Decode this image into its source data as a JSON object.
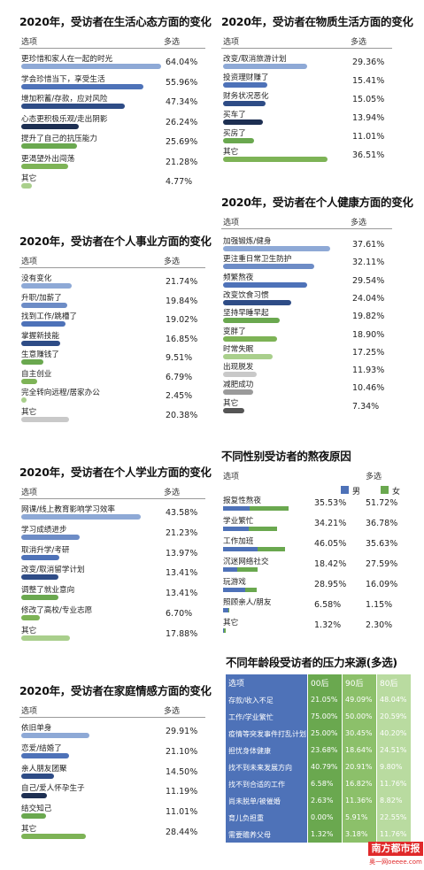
{
  "header_option": "选项",
  "header_multi": "多选",
  "panels": [
    {
      "id": "mind",
      "title": "2020年，受访者在生活心态方面的变化",
      "items": [
        {
          "label": "更珍惜和家人在一起的时光",
          "value": "64.04%",
          "v": 64.04,
          "color": "#8ea9d6"
        },
        {
          "label": "学会珍惜当下，享受生活",
          "value": "55.96%",
          "v": 55.96,
          "color": "#4e72b8"
        },
        {
          "label": "增加积蓄/存款，应对风险",
          "value": "47.34%",
          "v": 47.34,
          "color": "#2e4c86"
        },
        {
          "label": "心态更积极乐观/走出阴影",
          "value": "26.24%",
          "v": 26.24,
          "color": "#1d2f52"
        },
        {
          "label": "提升了自己的抗压能力",
          "value": "25.69%",
          "v": 25.69,
          "color": "#6aa84f"
        },
        {
          "label": "更渴望外出闯荡",
          "value": "21.28%",
          "v": 21.28,
          "color": "#7db356"
        },
        {
          "label": "其它",
          "value": "4.77%",
          "v": 4.77,
          "color": "#a9cf8c"
        }
      ]
    },
    {
      "id": "material",
      "title": "2020年，受访者在物质生活方面的变化",
      "items": [
        {
          "label": "改变/取消旅游计划",
          "value": "29.36%",
          "v": 29.36,
          "color": "#8ea9d6"
        },
        {
          "label": "投资理财赚了",
          "value": "15.41%",
          "v": 15.41,
          "color": "#4e72b8"
        },
        {
          "label": "财务状况恶化",
          "value": "15.05%",
          "v": 15.05,
          "color": "#2e4c86"
        },
        {
          "label": "买车了",
          "value": "13.94%",
          "v": 13.94,
          "color": "#1d2f52"
        },
        {
          "label": "买房了",
          "value": "11.01%",
          "v": 11.01,
          "color": "#6aa84f"
        },
        {
          "label": "其它",
          "value": "36.51%",
          "v": 36.51,
          "color": "#7db356"
        }
      ]
    },
    {
      "id": "health",
      "title": "2020年，受访者在个人健康方面的变化",
      "items": [
        {
          "label": "加强锻炼/健身",
          "value": "37.61%",
          "v": 37.61,
          "color": "#8ea9d6"
        },
        {
          "label": "更注重日常卫生防护",
          "value": "32.11%",
          "v": 32.11,
          "color": "#6d8cc6"
        },
        {
          "label": "频繁熬夜",
          "value": "29.54%",
          "v": 29.54,
          "color": "#4e72b8"
        },
        {
          "label": "改变饮食习惯",
          "value": "24.04%",
          "v": 24.04,
          "color": "#2e4c86"
        },
        {
          "label": "坚持早睡早起",
          "value": "19.82%",
          "v": 19.82,
          "color": "#6aa84f"
        },
        {
          "label": "变胖了",
          "value": "18.90%",
          "v": 18.9,
          "color": "#7db356"
        },
        {
          "label": "时常失眠",
          "value": "17.25%",
          "v": 17.25,
          "color": "#a9cf8c"
        },
        {
          "label": "出现脱发",
          "value": "11.93%",
          "v": 11.93,
          "color": "#c9c9c9"
        },
        {
          "label": "减肥成功",
          "value": "10.46%",
          "v": 10.46,
          "color": "#9a9a9a"
        },
        {
          "label": "其它",
          "value": "7.34%",
          "v": 7.34,
          "color": "#555555"
        }
      ]
    },
    {
      "id": "career",
      "title": "2020年，受访者在个人事业方面的变化",
      "items": [
        {
          "label": "没有变化",
          "value": "21.74%",
          "v": 21.74,
          "color": "#8ea9d6"
        },
        {
          "label": "升职/加薪了",
          "value": "19.84%",
          "v": 19.84,
          "color": "#6d8cc6"
        },
        {
          "label": "找到工作/跳槽了",
          "value": "19.02%",
          "v": 19.02,
          "color": "#4e72b8"
        },
        {
          "label": "掌握新技能",
          "value": "16.85%",
          "v": 16.85,
          "color": "#2e4c86"
        },
        {
          "label": "生意赚钱了",
          "value": "9.51%",
          "v": 9.51,
          "color": "#6aa84f"
        },
        {
          "label": "自主创业",
          "value": "6.79%",
          "v": 6.79,
          "color": "#7db356"
        },
        {
          "label": "完全转向远程/居家办公",
          "value": "2.45%",
          "v": 2.45,
          "color": "#a9cf8c"
        },
        {
          "label": "其它",
          "value": "20.38%",
          "v": 20.38,
          "color": "#c9c9c9"
        }
      ]
    },
    {
      "id": "study",
      "title": "2020年，受访者在个人学业方面的变化",
      "items": [
        {
          "label": "网课/线上教育影响学习效率",
          "value": "43.58%",
          "v": 43.58,
          "color": "#8ea9d6"
        },
        {
          "label": "学习成绩进步",
          "value": "21.23%",
          "v": 21.23,
          "color": "#6d8cc6"
        },
        {
          "label": "取消升学/考研",
          "value": "13.97%",
          "v": 13.97,
          "color": "#4e72b8"
        },
        {
          "label": "改变/取消留学计划",
          "value": "13.41%",
          "v": 13.41,
          "color": "#2e4c86"
        },
        {
          "label": "调整了就业意向",
          "value": "13.41%",
          "v": 13.41,
          "color": "#6aa84f"
        },
        {
          "label": "修改了高校/专业志愿",
          "value": "6.70%",
          "v": 6.7,
          "color": "#7db356"
        },
        {
          "label": "其它",
          "value": "17.88%",
          "v": 17.88,
          "color": "#a9cf8c"
        }
      ]
    },
    {
      "id": "family",
      "title": "2020年，受访者在家庭情感方面的变化",
      "items": [
        {
          "label": "依旧单身",
          "value": "29.91%",
          "v": 29.91,
          "color": "#8ea9d6"
        },
        {
          "label": "恋爱/结婚了",
          "value": "21.10%",
          "v": 21.1,
          "color": "#4e72b8"
        },
        {
          "label": "亲人朋友团聚",
          "value": "14.50%",
          "v": 14.5,
          "color": "#2e4c86"
        },
        {
          "label": "自己/爱人怀孕生子",
          "value": "11.19%",
          "v": 11.19,
          "color": "#1d2f52"
        },
        {
          "label": "结交知己",
          "value": "11.01%",
          "v": 11.01,
          "color": "#6aa84f"
        },
        {
          "label": "其它",
          "value": "28.44%",
          "v": 28.44,
          "color": "#7db356"
        }
      ]
    }
  ],
  "gender": {
    "title": "不同性别受访者的熬夜原因",
    "legend_male": "男",
    "legend_female": "女",
    "male_color": "#4e72b8",
    "female_color": "#6aa84f",
    "items": [
      {
        "label": "报复性熬夜",
        "male": "35.53%",
        "female": "51.72%",
        "m": 35.53,
        "f": 51.72
      },
      {
        "label": "学业繁忙",
        "male": "34.21%",
        "female": "36.78%",
        "m": 34.21,
        "f": 36.78
      },
      {
        "label": "工作加班",
        "male": "46.05%",
        "female": "35.63%",
        "m": 46.05,
        "f": 35.63
      },
      {
        "label": "沉迷网络社交",
        "male": "18.42%",
        "female": "27.59%",
        "m": 18.42,
        "f": 27.59
      },
      {
        "label": "玩游戏",
        "male": "28.95%",
        "female": "16.09%",
        "m": 28.95,
        "f": 16.09
      },
      {
        "label": "照顾亲人/朋友",
        "male": "6.58%",
        "female": "1.15%",
        "m": 6.58,
        "f": 1.15
      },
      {
        "label": "其它",
        "male": "1.32%",
        "female": "2.30%",
        "m": 1.32,
        "f": 2.3
      }
    ]
  },
  "age_table": {
    "title": "不同年龄段受访者的压力来源(多选)",
    "headers": [
      "选项",
      "00后",
      "90后",
      "80后"
    ],
    "colors": [
      "#4e72b8",
      "#6aa84f",
      "#8cc06a",
      "#b9dba0"
    ],
    "rows": [
      [
        "存款/收入不足",
        "21.05%",
        "49.09%",
        "48.04%"
      ],
      [
        "工作/学业繁忙",
        "75.00%",
        "50.00%",
        "20.59%"
      ],
      [
        "疫情等突发事件打乱计划",
        "25.00%",
        "30.45%",
        "40.20%"
      ],
      [
        "担忧身体健康",
        "23.68%",
        "18.64%",
        "24.51%"
      ],
      [
        "找不到未来发展方向",
        "40.79%",
        "20.91%",
        "9.80%"
      ],
      [
        "找不到合适的工作",
        "6.58%",
        "16.82%",
        "11.76%"
      ],
      [
        "尚未脱单/被催婚",
        "2.63%",
        "11.36%",
        "8.82%"
      ],
      [
        "育儿负担重",
        "0.00%",
        "5.91%",
        "22.55%"
      ],
      [
        "需要赡养父母",
        "1.32%",
        "3.18%",
        "11.76%"
      ]
    ]
  },
  "watermark": {
    "line1": "南方都市报",
    "line2": "奥一网oeeee.com"
  },
  "chart_data": [
    {
      "type": "bar",
      "title": "2020年，受访者在生活心态方面的变化",
      "categories": [
        "更珍惜和家人在一起的时光",
        "学会珍惜当下，享受生活",
        "增加积蓄/存款，应对风险",
        "心态更积极乐观/走出阴影",
        "提升了自己的抗压能力",
        "更渴望外出闯荡",
        "其它"
      ],
      "values": [
        64.04,
        55.96,
        47.34,
        26.24,
        25.69,
        21.28,
        4.77
      ]
    },
    {
      "type": "bar",
      "title": "2020年，受访者在物质生活方面的变化",
      "categories": [
        "改变/取消旅游计划",
        "投资理财赚了",
        "财务状况恶化",
        "买车了",
        "买房了",
        "其它"
      ],
      "values": [
        29.36,
        15.41,
        15.05,
        13.94,
        11.01,
        36.51
      ]
    },
    {
      "type": "bar",
      "title": "2020年，受访者在个人健康方面的变化",
      "categories": [
        "加强锻炼/健身",
        "更注重日常卫生防护",
        "频繁熬夜",
        "改变饮食习惯",
        "坚持早睡早起",
        "变胖了",
        "时常失眠",
        "出现脱发",
        "减肥成功",
        "其它"
      ],
      "values": [
        37.61,
        32.11,
        29.54,
        24.04,
        19.82,
        18.9,
        17.25,
        11.93,
        10.46,
        7.34
      ]
    },
    {
      "type": "bar",
      "title": "2020年，受访者在个人事业方面的变化",
      "categories": [
        "没有变化",
        "升职/加薪了",
        "找到工作/跳槽了",
        "掌握新技能",
        "生意赚钱了",
        "自主创业",
        "完全转向远程/居家办公",
        "其它"
      ],
      "values": [
        21.74,
        19.84,
        19.02,
        16.85,
        9.51,
        6.79,
        2.45,
        20.38
      ]
    },
    {
      "type": "bar",
      "title": "2020年，受访者在个人学业方面的变化",
      "categories": [
        "网课/线上教育影响学习效率",
        "学习成绩进步",
        "取消升学/考研",
        "改变/取消留学计划",
        "调整了就业意向",
        "修改了高校/专业志愿",
        "其它"
      ],
      "values": [
        43.58,
        21.23,
        13.97,
        13.41,
        13.41,
        6.7,
        17.88
      ]
    },
    {
      "type": "bar",
      "title": "2020年，受访者在家庭情感方面的变化",
      "categories": [
        "依旧单身",
        "恋爱/结婚了",
        "亲人朋友团聚",
        "自己/爱人怀孕生子",
        "结交知己",
        "其它"
      ],
      "values": [
        29.91,
        21.1,
        14.5,
        11.19,
        11.01,
        28.44
      ]
    },
    {
      "type": "bar",
      "title": "不同性别受访者的熬夜原因",
      "categories": [
        "报复性熬夜",
        "学业繁忙",
        "工作加班",
        "沉迷网络社交",
        "玩游戏",
        "照顾亲人/朋友",
        "其它"
      ],
      "series": [
        {
          "name": "男",
          "values": [
            35.53,
            34.21,
            46.05,
            18.42,
            28.95,
            6.58,
            1.32
          ]
        },
        {
          "name": "女",
          "values": [
            51.72,
            36.78,
            35.63,
            27.59,
            16.09,
            1.15,
            2.3
          ]
        }
      ]
    },
    {
      "type": "table",
      "title": "不同年龄段受访者的压力来源(多选)",
      "columns": [
        "选项",
        "00后",
        "90后",
        "80后"
      ],
      "rows": [
        [
          "存款/收入不足",
          21.05,
          49.09,
          48.04
        ],
        [
          "工作/学业繁忙",
          75.0,
          50.0,
          20.59
        ],
        [
          "疫情等突发事件打乱计划",
          25.0,
          30.45,
          40.2
        ],
        [
          "担忧身体健康",
          23.68,
          18.64,
          24.51
        ],
        [
          "找不到未来发展方向",
          40.79,
          20.91,
          9.8
        ],
        [
          "找不到合适的工作",
          6.58,
          16.82,
          11.76
        ],
        [
          "尚未脱单/被催婚",
          2.63,
          11.36,
          8.82
        ],
        [
          "育儿负担重",
          0.0,
          5.91,
          22.55
        ],
        [
          "需要赡养父母",
          1.32,
          3.18,
          11.76
        ]
      ]
    }
  ]
}
